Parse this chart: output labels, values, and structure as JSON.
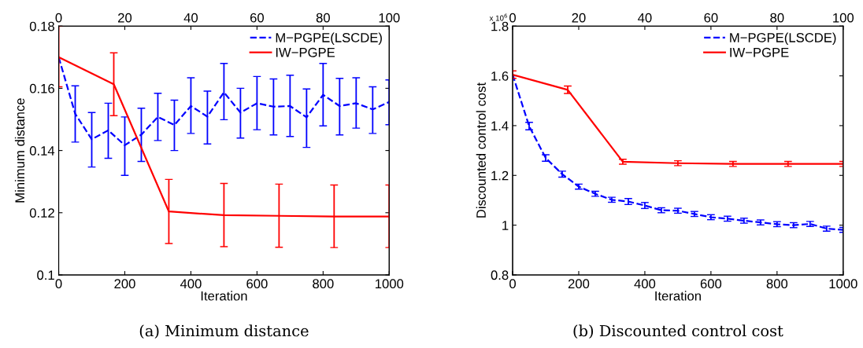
{
  "chart_data": [
    {
      "type": "line",
      "xlabel": "Iteration",
      "ylabel": "Minimum distance",
      "legend": "top right",
      "grid": false,
      "marker": "none",
      "xlim": [
        0,
        1000
      ],
      "xticks": [
        0,
        200,
        400,
        600,
        800,
        1000
      ],
      "x2lim": [
        0,
        100
      ],
      "x2ticks": [
        0,
        20,
        40,
        60,
        80,
        100
      ],
      "ylim": [
        0.1,
        0.18
      ],
      "yticks": [
        0.1,
        0.12,
        0.14,
        0.16,
        0.18
      ],
      "series": [
        {
          "name": "M−PGPE(LSCDE)",
          "color": "#0000ff",
          "line_style": "dashed",
          "x": [
            0,
            50,
            100,
            150,
            200,
            250,
            300,
            350,
            400,
            450,
            500,
            550,
            600,
            650,
            700,
            750,
            800,
            850,
            900,
            950,
            1000
          ],
          "values": [
            0.17,
            0.1518,
            0.1436,
            0.1465,
            0.1417,
            0.1451,
            0.1508,
            0.1482,
            0.1543,
            0.1509,
            0.1587,
            0.1522,
            0.1552,
            0.1541,
            0.1543,
            0.1507,
            0.1579,
            0.1543,
            0.1552,
            0.1532,
            0.1556
          ],
          "errors": [
            null,
            [
              0.1427,
              0.1608
            ],
            [
              0.1347,
              0.1522
            ],
            [
              0.1375,
              0.1552
            ],
            [
              0.132,
              0.1508
            ],
            [
              0.1365,
              0.1536
            ],
            [
              0.1432,
              0.1584
            ],
            [
              0.14,
              0.1562
            ],
            [
              0.1455,
              0.1634
            ],
            [
              0.1421,
              0.1591
            ],
            [
              0.1499,
              0.168
            ],
            [
              0.144,
              0.16
            ],
            [
              0.1467,
              0.1638
            ],
            [
              0.145,
              0.163
            ],
            [
              0.1445,
              0.1642
            ],
            [
              0.141,
              0.1598
            ],
            [
              0.1479,
              0.168
            ],
            [
              0.145,
              0.1632
            ],
            [
              0.1472,
              0.1634
            ],
            [
              0.1455,
              0.1605
            ],
            [
              0.1483,
              0.1627
            ]
          ]
        },
        {
          "name": "IW−PGPE",
          "color": "#ff0000",
          "line_style": "solid",
          "x": [
            0,
            166.7,
            333.3,
            500,
            666.7,
            833.3,
            1000
          ],
          "values": [
            0.17,
            0.1613,
            0.1204,
            0.1192,
            0.119,
            0.1188,
            0.1188
          ],
          "errors": [
            [
              0.1605,
              0.18
            ],
            [
              0.1512,
              0.1714
            ],
            [
              0.1101,
              0.1307
            ],
            [
              0.1091,
              0.1294
            ],
            [
              0.1089,
              0.1292
            ],
            [
              0.1088,
              0.1289
            ],
            [
              0.1088,
              0.1289
            ]
          ]
        }
      ],
      "annotations": [
        "(a) Minimum distance"
      ]
    },
    {
      "type": "line",
      "xlabel": "Iteration",
      "ylabel": "Discounted control cost",
      "legend": "top right",
      "grid": false,
      "marker": "none",
      "xlim": [
        0,
        1000
      ],
      "xticks": [
        0,
        200,
        400,
        600,
        800,
        1000
      ],
      "x2lim": [
        0,
        100
      ],
      "x2ticks": [
        0,
        20,
        40,
        60,
        80,
        100
      ],
      "ylim": [
        0.8,
        1.8
      ],
      "yticks": [
        0.8,
        1,
        1.2,
        1.4,
        1.6,
        1.8
      ],
      "series": [
        {
          "name": "M−PGPE(LSCDE)",
          "color": "#0000ff",
          "line_style": "dashed",
          "x": [
            0,
            50,
            100,
            150,
            200,
            250,
            300,
            350,
            400,
            450,
            500,
            550,
            600,
            650,
            700,
            750,
            800,
            850,
            900,
            950,
            1000
          ],
          "values": [
            1.605,
            1.398,
            1.27,
            1.205,
            1.155,
            1.126,
            1.102,
            1.095,
            1.079,
            1.06,
            1.058,
            1.045,
            1.032,
            1.026,
            1.018,
            1.011,
            1.004,
            1.0,
            1.005,
            0.986,
            0.981
          ],
          "errors": [
            null,
            0.015,
            0.013,
            0.012,
            0.01,
            0.01,
            0.01,
            0.012,
            0.012,
            0.01,
            0.01,
            0.01,
            0.01,
            0.01,
            0.01,
            0.01,
            0.01,
            0.01,
            0.01,
            0.01,
            0.01
          ]
        },
        {
          "name": "IW−PGPE",
          "color": "#ff0000",
          "line_style": "solid",
          "x": [
            0,
            166.7,
            333.3,
            500,
            666.7,
            833.3,
            1000
          ],
          "values": [
            1.605,
            1.544,
            1.255,
            1.249,
            1.246,
            1.246,
            1.246
          ],
          "errors": [
            0.015,
            0.015,
            0.01,
            0.01,
            0.01,
            0.01,
            0.01
          ]
        }
      ],
      "annotations": [
        "x 10$^{6}$",
        "(b) Discounted control cost"
      ]
    }
  ]
}
